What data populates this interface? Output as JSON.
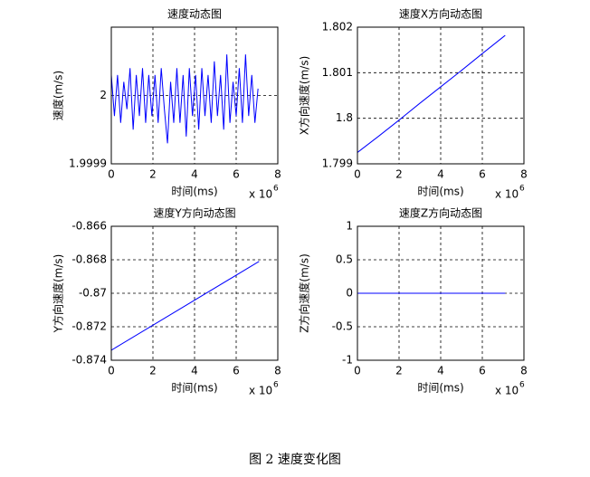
{
  "chart_data": [
    {
      "type": "line",
      "title": "速度动态图",
      "xlabel": "时间(ms)",
      "ylabel": "速度(m/s)",
      "x_scale_base": "x 10",
      "x_scale_exponent": "6",
      "x": [
        0,
        0.15,
        0.3,
        0.45,
        0.6,
        0.75,
        0.9,
        1.05,
        1.2,
        1.35,
        1.5,
        1.65,
        1.8,
        1.95,
        2.1,
        2.25,
        2.4,
        2.55,
        2.7,
        2.85,
        3,
        3.15,
        3.3,
        3.45,
        3.6,
        3.75,
        3.9,
        4.05,
        4.2,
        4.35,
        4.5,
        4.65,
        4.8,
        4.95,
        5.1,
        5.25,
        5.4,
        5.55,
        5.7,
        5.85,
        6,
        6.15,
        6.3,
        6.45,
        6.6,
        6.75,
        6.9,
        7.05
      ],
      "values": [
        2.00003,
        1.99997,
        2.00003,
        1.99996,
        2.00002,
        1.99998,
        2.00004,
        1.99995,
        2.00003,
        1.99997,
        2.00004,
        1.99996,
        2.00003,
        1.99997,
        2.00003,
        1.99996,
        2.00004,
        1.99998,
        1.99993,
        2.00002,
        1.99996,
        2.00004,
        1.99996,
        2.00003,
        1.99994,
        2.00004,
        1.99997,
        2.00003,
        1.99995,
        2.00004,
        1.99997,
        2.00003,
        1.99996,
        2.00005,
        1.99997,
        2.00003,
        1.99995,
        2.00006,
        1.99996,
        2.00002,
        1.99997,
        2.00004,
        1.99996,
        2.00006,
        1.99997,
        2.00003,
        1.99996,
        2.00001
      ],
      "color": "#0000ff",
      "xlim": [
        0,
        8
      ],
      "xticks": [
        0,
        2,
        4,
        6,
        8
      ],
      "ylim": [
        1.9999,
        2.0001
      ],
      "yticks": [
        1.9999,
        2
      ],
      "grid": true
    },
    {
      "type": "line",
      "title": "速度X方向动态图",
      "xlabel": "时间(ms)",
      "ylabel": "X方向速度(m/s)",
      "x_scale_base": "x 10",
      "x_scale_exponent": "6",
      "x": [
        0,
        1,
        2,
        3,
        4,
        5,
        6,
        7.1
      ],
      "values": [
        1.79925,
        1.7996,
        1.79996,
        1.80033,
        1.80069,
        1.80105,
        1.80142,
        1.80182
      ],
      "color": "#0000ff",
      "xlim": [
        0,
        8
      ],
      "xticks": [
        0,
        2,
        4,
        6,
        8
      ],
      "ylim": [
        1.799,
        1.802
      ],
      "yticks": [
        1.799,
        1.8,
        1.801,
        1.802
      ],
      "grid": true
    },
    {
      "type": "line",
      "title": "速度Y方向动态图",
      "xlabel": "时间(ms)",
      "ylabel": "Y方向速度(m/s)",
      "x_scale_base": "x 10",
      "x_scale_exponent": "6",
      "x": [
        0,
        7.1
      ],
      "values": [
        -0.8734,
        -0.8681
      ],
      "color": "#0000ff",
      "xlim": [
        0,
        8
      ],
      "xticks": [
        0,
        2,
        4,
        6,
        8
      ],
      "ylim": [
        -0.874,
        -0.866
      ],
      "yticks": [
        -0.874,
        -0.872,
        -0.87,
        -0.868,
        -0.866
      ],
      "grid": true
    },
    {
      "type": "line",
      "title": "速度Z方向动态图",
      "xlabel": "时间(ms)",
      "ylabel": "Z方向速度(m/s)",
      "x_scale_base": "x 10",
      "x_scale_exponent": "6",
      "x": [
        0,
        7.1
      ],
      "values": [
        0,
        0
      ],
      "color": "#0000ff",
      "xlim": [
        0,
        8
      ],
      "xticks": [
        0,
        2,
        4,
        6,
        8
      ],
      "ylim": [
        -1,
        1
      ],
      "yticks": [
        -1,
        -0.5,
        0,
        0.5,
        1
      ],
      "grid": true
    }
  ],
  "caption": "图 2  速度变化图"
}
